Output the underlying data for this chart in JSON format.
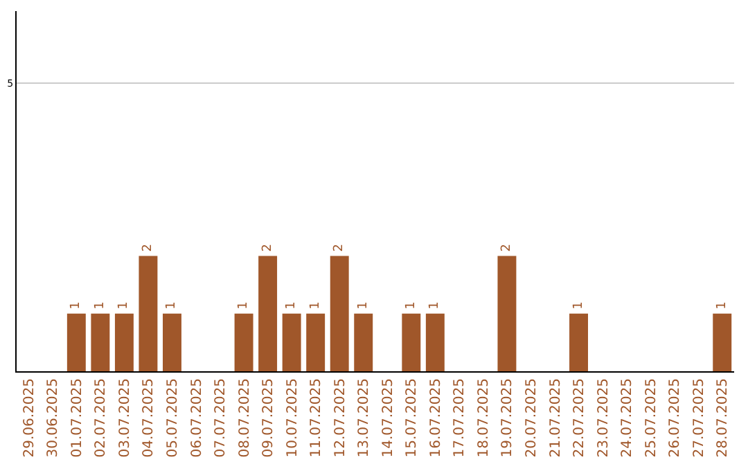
{
  "chart_data": {
    "type": "bar",
    "categories": [
      "29.06.2025",
      "30.06.2025",
      "01.07.2025",
      "02.07.2025",
      "03.07.2025",
      "04.07.2025",
      "05.07.2025",
      "06.07.2025",
      "07.07.2025",
      "08.07.2025",
      "09.07.2025",
      "10.07.2025",
      "11.07.2025",
      "12.07.2025",
      "13.07.2025",
      "14.07.2025",
      "15.07.2025",
      "16.07.2025",
      "17.07.2025",
      "18.07.2025",
      "19.07.2025",
      "20.07.2025",
      "21.07.2025",
      "22.07.2025",
      "23.07.2025",
      "24.07.2025",
      "25.07.2025",
      "26.07.2025",
      "27.07.2025",
      "28.07.2025"
    ],
    "values": [
      0,
      0,
      1,
      1,
      1,
      2,
      1,
      0,
      0,
      1,
      2,
      1,
      1,
      2,
      1,
      0,
      1,
      1,
      0,
      0,
      2,
      0,
      0,
      1,
      0,
      0,
      0,
      0,
      0,
      1
    ],
    "value_labels": [
      null,
      null,
      "1",
      "1",
      "1",
      "2",
      "1",
      null,
      null,
      "1",
      "2",
      "1",
      "1",
      "2",
      "1",
      null,
      "1",
      "1",
      null,
      null,
      "2",
      null,
      null,
      "1",
      null,
      null,
      null,
      null,
      null,
      "1"
    ],
    "color": "#a0572a",
    "ylim": [
      0,
      6.25
    ],
    "yticks": [
      5
    ],
    "grid": "y"
  }
}
